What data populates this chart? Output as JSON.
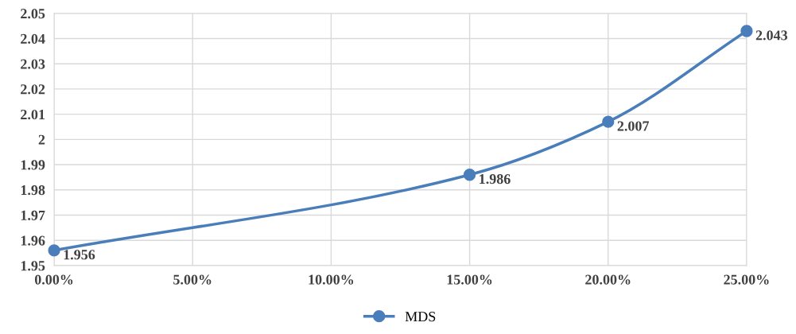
{
  "chart_data": {
    "type": "line",
    "x": [
      0,
      15,
      20,
      25
    ],
    "series": [
      {
        "name": "MDS",
        "color": "#4a7ebb",
        "values": [
          1.956,
          1.986,
          2.007,
          2.043
        ]
      }
    ],
    "xlim": [
      0,
      25
    ],
    "xticks": [
      {
        "value": 0,
        "label": "0.00%"
      },
      {
        "value": 5,
        "label": "5.00%"
      },
      {
        "value": 10,
        "label": "10.00%"
      },
      {
        "value": 15,
        "label": "15.00%"
      },
      {
        "value": 20,
        "label": "20.00%"
      },
      {
        "value": 25,
        "label": "25.00%"
      }
    ],
    "ylim": [
      1.95,
      2.05
    ],
    "yticks": [
      1.95,
      1.96,
      1.97,
      1.98,
      1.99,
      2,
      2.01,
      2.02,
      2.03,
      2.04,
      2.05
    ],
    "grid": true,
    "legend": "bottom",
    "marker": "circle",
    "line_style": "solid",
    "data_labels": true
  }
}
